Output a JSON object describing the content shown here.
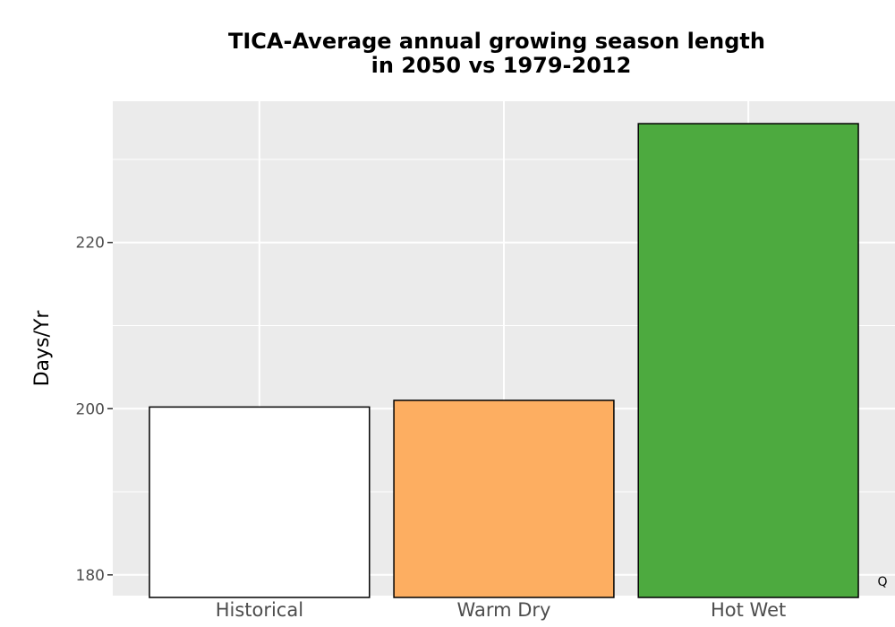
{
  "chart_data": {
    "type": "bar",
    "title_lines": [
      "TICA-Average annual growing season length",
      "in 2050 vs 1979-2012"
    ],
    "xlabel": "",
    "ylabel": "Days/Yr",
    "categories": [
      "Historical",
      "Warm Dry",
      "Hot Wet"
    ],
    "values": [
      200.2,
      201.0,
      234.3
    ],
    "colors": [
      "#ffffff",
      "#fdae61",
      "#4daa3f"
    ],
    "ylim": [
      177.5,
      237.0
    ],
    "yticks": [
      180,
      200,
      220
    ],
    "grid": true,
    "legend": "none"
  },
  "corner_mark": "Q",
  "colors": {
    "panel_background": "#ebebeb",
    "grid": "#ffffff",
    "bar_outline": "#000000"
  }
}
